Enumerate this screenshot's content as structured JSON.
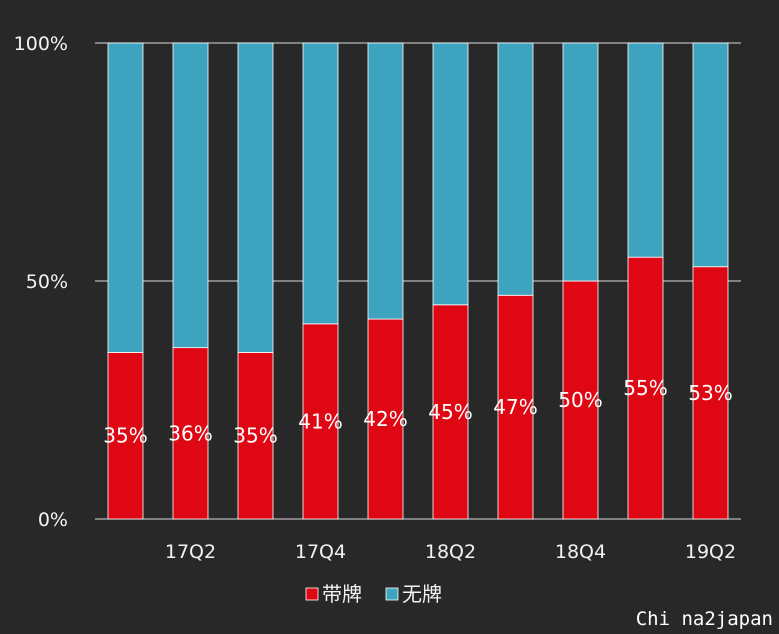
{
  "chart_data": {
    "type": "bar",
    "stacked": "percent",
    "categories": [
      "",
      "17Q2",
      "",
      "17Q4",
      "",
      "18Q2",
      "",
      "18Q4",
      "",
      "19Q2"
    ],
    "series": [
      {
        "name": "带牌",
        "color": "#e00714",
        "values": [
          35,
          36,
          35,
          41,
          42,
          45,
          47,
          50,
          55,
          53
        ]
      },
      {
        "name": "无牌",
        "color": "#3ea3bf",
        "values": [
          65,
          64,
          65,
          59,
          58,
          55,
          53,
          50,
          45,
          47
        ]
      }
    ],
    "data_labels": [
      "35%",
      "36%",
      "35%",
      "41%",
      "42%",
      "45%",
      "47%",
      "50%",
      "55%",
      "53%"
    ],
    "y_ticks": [
      "0%",
      "50%",
      "100%"
    ],
    "ylim": [
      0,
      100
    ],
    "grid": true,
    "legend_position": "bottom"
  },
  "watermark": "Chi na2japan"
}
